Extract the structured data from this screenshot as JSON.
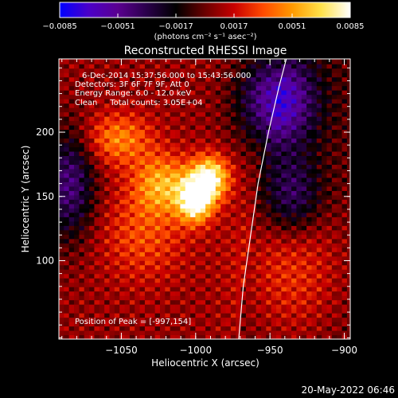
{
  "chart_data": {
    "type": "heatmap",
    "title": "Reconstructed RHESSI Image",
    "xlabel": "Heliocentric X (arcsec)",
    "ylabel": "Heliocentric Y (arcsec)",
    "xlim": [
      -1092,
      -896
    ],
    "ylim": [
      39,
      257
    ],
    "x_ticks": [
      {
        "value": -1050,
        "label": "−1050"
      },
      {
        "value": -1000,
        "label": "−1000"
      },
      {
        "value": -950,
        "label": "−950"
      },
      {
        "value": -900,
        "label": "−900"
      }
    ],
    "y_ticks": [
      {
        "value": 100,
        "label": "100"
      },
      {
        "value": 150,
        "label": "150"
      },
      {
        "value": 200,
        "label": "200"
      }
    ],
    "colorbar": {
      "range": [
        -0.0085,
        0.0085
      ],
      "tick_values": [
        -0.0085,
        -0.0051,
        -0.0017,
        0.0017,
        0.0051,
        0.0085
      ],
      "tick_labels": [
        "−0.0085",
        "−0.0051",
        "−0.0017",
        "0.0017",
        "0.0051",
        "0.0085"
      ],
      "unit_label": "(photons cm⁻² s⁻¹ asec⁻²)",
      "colormap": [
        "#0000ff",
        "#4b00c8",
        "#5a0090",
        "#2a004a",
        "#000000",
        "#6a0000",
        "#c80000",
        "#ff4a00",
        "#ff9a00",
        "#ffe24a",
        "#ffffff"
      ]
    },
    "annotations": [
      "6-Dec-2014 15:37:56.000 to 15:43:56.000",
      "Detectors: 3F 6F 7F 9F, Att 0",
      "Energy Range: 6.0 - 12.0 keV",
      "Clean     Total counts: 3.05E+04"
    ],
    "peak_label": "Position of Peak = [-997,154]",
    "peak": {
      "x": -997,
      "y": 154
    },
    "limb": [
      [
        -971,
        39
      ],
      [
        -968,
        80
      ],
      [
        -963,
        120
      ],
      [
        -958,
        160
      ],
      [
        -951,
        200
      ],
      [
        -944,
        235
      ],
      [
        -939,
        257
      ]
    ],
    "sources": [
      {
        "x": -1000,
        "y": 148,
        "amp": 1.0,
        "sx": 8,
        "sy": 12
      },
      {
        "x": -990,
        "y": 165,
        "amp": 0.85,
        "sx": 9,
        "sy": 12
      },
      {
        "x": -1022,
        "y": 160,
        "amp": 0.55,
        "sx": 14,
        "sy": 16
      },
      {
        "x": -1052,
        "y": 195,
        "amp": 0.45,
        "sx": 16,
        "sy": 14
      },
      {
        "x": -1035,
        "y": 120,
        "amp": 0.3,
        "sx": 20,
        "sy": 25
      },
      {
        "x": -935,
        "y": 95,
        "amp": 0.35,
        "sx": 25,
        "sy": 40
      }
    ],
    "negative_regions": [
      {
        "x": -945,
        "y": 225,
        "amp": -0.8,
        "sx": 18,
        "sy": 25
      },
      {
        "x": -935,
        "y": 150,
        "amp": -0.5,
        "sx": 14,
        "sy": 22
      },
      {
        "x": -1085,
        "y": 160,
        "amp": -0.6,
        "sx": 12,
        "sy": 30
      }
    ]
  },
  "footer": {
    "timestamp": "20-May-2022 06:46"
  }
}
